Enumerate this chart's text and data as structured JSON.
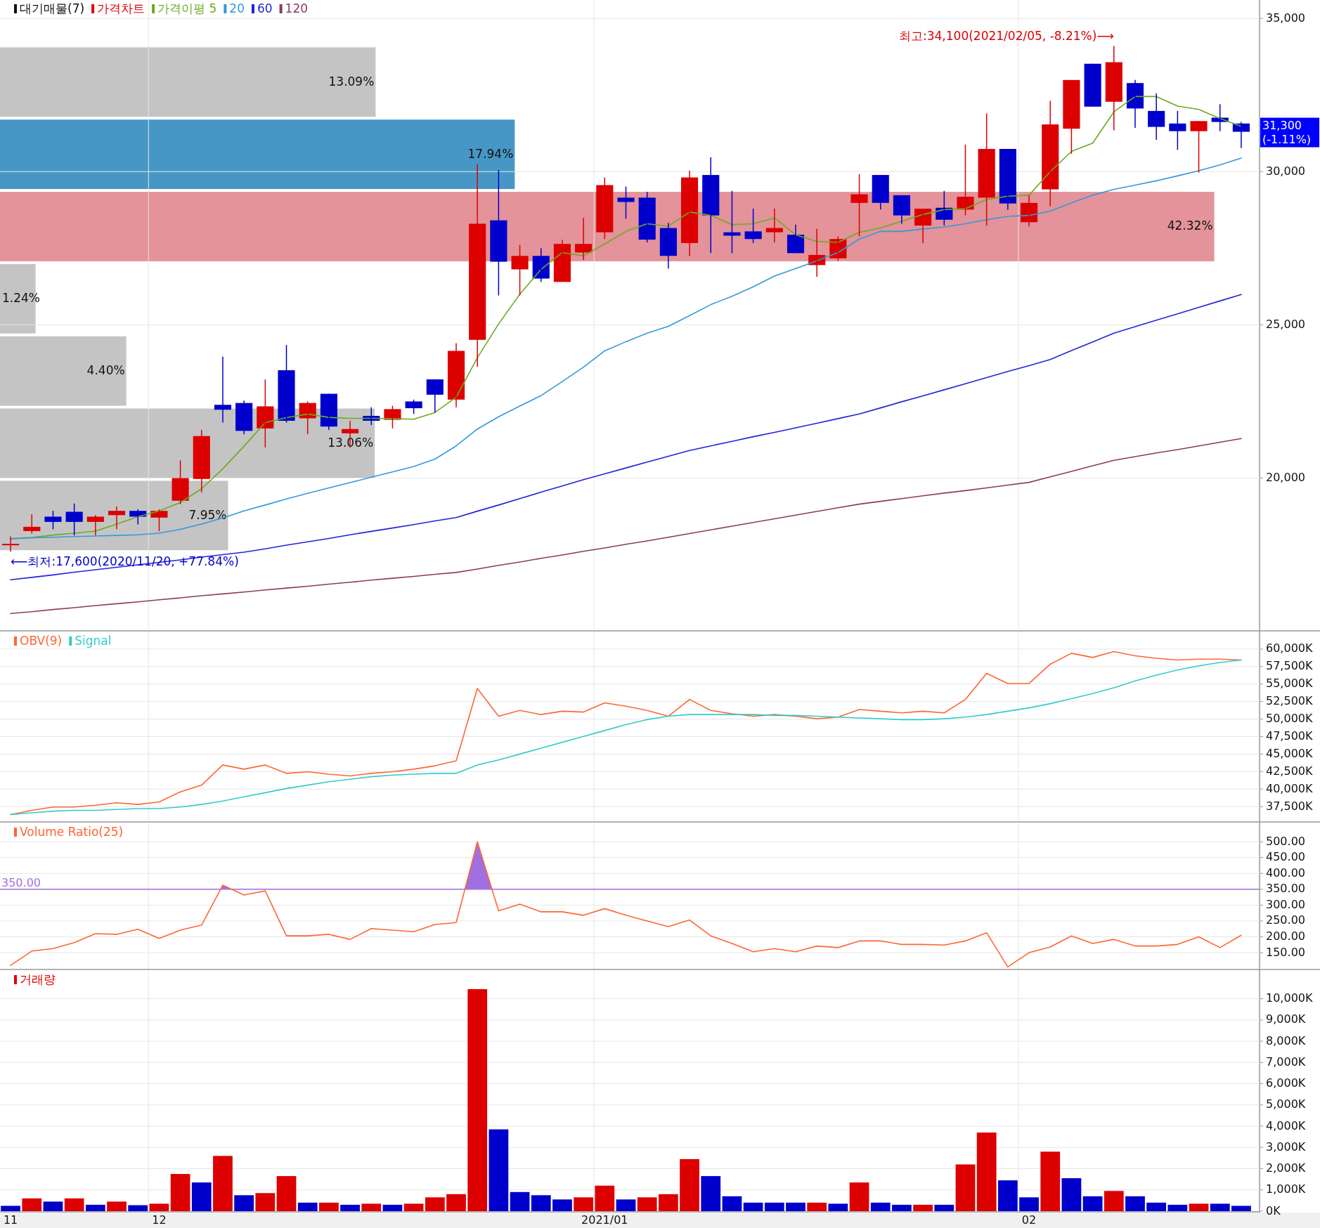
{
  "chart_data": [
    {
      "type": "bar",
      "orientation": "horizontal",
      "categories": [
        null,
        null,
        null,
        null,
        null,
        null,
        null
      ],
      "series": [
        {
          "name": "대기매물(7)",
          "values": [
            13.09,
            17.94,
            42.32,
            1.24,
            4.4,
            13.06,
            7.95
          ],
          "colors": [
            "#c4c4c4",
            "#4797c6",
            "#e39399",
            "#c4c4c4",
            "#c4c4c4",
            "#c4c4c4",
            "#c4c4c4"
          ],
          "value_labels": [
            "13.09%",
            "17.94%",
            "42.32%",
            "1.24%",
            "4.40%",
            "13.06%",
            "7.95%"
          ]
        }
      ],
      "tick_labels": false,
      "legend": "top left"
    },
    {
      "type": "candlestick",
      "categories": [
        "11",
        null,
        null,
        null,
        null,
        null,
        null,
        "12",
        null,
        null,
        null,
        null,
        null,
        null,
        null,
        null,
        null,
        null,
        null,
        null,
        null,
        null,
        null,
        null,
        null,
        null,
        null,
        null,
        "2021/01",
        null,
        null,
        null,
        null,
        null,
        null,
        null,
        null,
        null,
        null,
        null,
        null,
        null,
        null,
        null,
        null,
        null,
        null,
        null,
        "02",
        null,
        null,
        null,
        null,
        null,
        null,
        null,
        null,
        null,
        null
      ],
      "series": [
        {
          "name": "가격차트",
          "type": "candlestick",
          "color": "#dd0000",
          "ohlc": [
            [
              17830,
              18100,
              17600,
              17830
            ],
            [
              18270,
              18820,
              18190,
              18410
            ],
            [
              18740,
              18930,
              18330,
              18570
            ],
            [
              18900,
              19170,
              18130,
              18570
            ],
            [
              18570,
              18790,
              18130,
              18740
            ],
            [
              18790,
              19070,
              18330,
              18930
            ],
            [
              18930,
              18980,
              18490,
              18740
            ],
            [
              18710,
              18980,
              18270,
              18930
            ],
            [
              19260,
              20580,
              19150,
              20000
            ],
            [
              19970,
              21570,
              19530,
              21370
            ],
            [
              22390,
              23960,
              21810,
              22230
            ],
            [
              22450,
              22530,
              21430,
              21540
            ],
            [
              21620,
              23220,
              21000,
              22340
            ],
            [
              23520,
              24340,
              21810,
              21870
            ],
            [
              21950,
              22500,
              21430,
              22450
            ],
            [
              22750,
              22750,
              21570,
              21680
            ],
            [
              21460,
              21870,
              21000,
              21600
            ],
            [
              22030,
              22310,
              21730,
              21870
            ],
            [
              21900,
              22360,
              21620,
              22250
            ],
            [
              22500,
              22560,
              22090,
              22280
            ],
            [
              23220,
              23220,
              22140,
              22720
            ],
            [
              22560,
              24400,
              22310,
              24150
            ],
            [
              24510,
              30250,
              23630,
              28300
            ],
            [
              28410,
              30050,
              25960,
              27060
            ],
            [
              26810,
              27610,
              25960,
              27250
            ],
            [
              27250,
              27500,
              26400,
              26510
            ],
            [
              26400,
              27780,
              26400,
              27640
            ],
            [
              27360,
              28490,
              27120,
              27640
            ],
            [
              28020,
              29810,
              27800,
              29560
            ],
            [
              29150,
              29510,
              28460,
              29010
            ],
            [
              29150,
              29340,
              27690,
              27780
            ],
            [
              28160,
              28330,
              26840,
              27250
            ],
            [
              27670,
              30030,
              27250,
              29810
            ],
            [
              29890,
              30470,
              27340,
              28570
            ],
            [
              28020,
              29370,
              27340,
              27910
            ],
            [
              28050,
              28790,
              27670,
              27800
            ],
            [
              28020,
              28790,
              27690,
              28160
            ],
            [
              27940,
              28270,
              27340,
              27340
            ],
            [
              26950,
              28130,
              26570,
              27280
            ],
            [
              27170,
              27890,
              27090,
              27800
            ],
            [
              28980,
              29920,
              27890,
              29260
            ],
            [
              29890,
              29890,
              28760,
              28980
            ],
            [
              29230,
              29230,
              28300,
              28570
            ],
            [
              28240,
              28790,
              27670,
              28790
            ],
            [
              28820,
              29370,
              28240,
              28430
            ],
            [
              28760,
              30880,
              28570,
              29180
            ],
            [
              29150,
              31900,
              28240,
              30740
            ],
            [
              30740,
              30740,
              28760,
              28960
            ],
            [
              28350,
              29230,
              28210,
              28980
            ],
            [
              29420,
              32310,
              28870,
              31540
            ],
            [
              31400,
              32990,
              30580,
              32990
            ],
            [
              33520,
              33520,
              32120,
              32120
            ],
            [
              32280,
              34100,
              31350,
              33570
            ],
            [
              32890,
              32990,
              31430,
              32060
            ],
            [
              31980,
              32550,
              31040,
              31460
            ],
            [
              31570,
              31980,
              30710,
              31320
            ],
            [
              31320,
              31650,
              29970,
              31650
            ],
            [
              31760,
              32200,
              31320,
              31620
            ],
            [
              31570,
              31620,
              30770,
              31300
            ]
          ],
          "colors": [
            "#dd0000",
            "#dd0000",
            "#0000cc",
            "#0000cc",
            "#dd0000",
            "#dd0000",
            "#0000cc",
            "#dd0000",
            "#dd0000",
            "#dd0000",
            "#0000cc",
            "#0000cc",
            "#dd0000",
            "#0000cc",
            "#dd0000",
            "#0000cc",
            "#dd0000",
            "#0000cc",
            "#dd0000",
            "#0000cc",
            "#0000cc",
            "#dd0000",
            "#dd0000",
            "#0000cc",
            "#dd0000",
            "#0000cc",
            "#dd0000",
            "#dd0000",
            "#dd0000",
            "#0000cc",
            "#0000cc",
            "#0000cc",
            "#dd0000",
            "#0000cc",
            "#0000cc",
            "#0000cc",
            "#dd0000",
            "#0000cc",
            "#dd0000",
            "#dd0000",
            "#dd0000",
            "#0000cc",
            "#0000cc",
            "#dd0000",
            "#0000cc",
            "#dd0000",
            "#dd0000",
            "#0000cc",
            "#dd0000",
            "#dd0000",
            "#dd0000",
            "#0000cc",
            "#dd0000",
            "#0000cc",
            "#0000cc",
            "#0000cc",
            "#dd0000",
            "#0000cc",
            "#0000cc"
          ]
        },
        {
          "name": "가격이평 5",
          "type": "line",
          "color": "#6aab22",
          "values": [
            18020,
            18060,
            18140,
            18200,
            18270,
            18500,
            18740,
            18930,
            19200,
            19650,
            20300,
            21040,
            21810,
            21970,
            22090,
            21980,
            21950,
            21950,
            21940,
            21920,
            22140,
            22640,
            23930,
            25030,
            26000,
            26810,
            27360,
            27250,
            27640,
            28050,
            28300,
            28220,
            28680,
            28570,
            28270,
            28300,
            28490,
            27940,
            27720,
            27690,
            28020,
            28160,
            28380,
            28600,
            28760,
            28790,
            29090,
            29200,
            29230,
            30000,
            30660,
            30930,
            31950,
            32450,
            32450,
            32140,
            32030,
            31730,
            31480
          ]
        },
        {
          "name": "20",
          "type": "line",
          "color": "#3399dd",
          "values": [
            18020,
            18050,
            18070,
            18090,
            18110,
            18130,
            18150,
            18200,
            18330,
            18500,
            18700,
            18930,
            19120,
            19320,
            19500,
            19680,
            19850,
            20030,
            20200,
            20380,
            20620,
            21050,
            21600,
            22000,
            22350,
            22690,
            23150,
            23620,
            24150,
            24450,
            24730,
            24950,
            25300,
            25660,
            25930,
            26240,
            26590,
            26840,
            27090,
            27360,
            27800,
            28050,
            28050,
            28130,
            28190,
            28300,
            28430,
            28540,
            28570,
            28710,
            28980,
            29230,
            29420,
            29560,
            29700,
            29860,
            30030,
            30220,
            30440
          ]
        },
        {
          "name": "60",
          "type": "line",
          "color": "#2222dd",
          "values": [
            16680,
            16760,
            16840,
            16930,
            17010,
            17090,
            17170,
            17250,
            17330,
            17420,
            17500,
            17580,
            17690,
            17810,
            17920,
            18030,
            18150,
            18260,
            18370,
            18480,
            18600,
            18710,
            18920,
            19120,
            19330,
            19540,
            19740,
            19950,
            20140,
            20330,
            20520,
            20710,
            20900,
            21050,
            21200,
            21350,
            21490,
            21640,
            21790,
            21940,
            22090,
            22290,
            22490,
            22680,
            22880,
            23080,
            23280,
            23480,
            23670,
            23870,
            24160,
            24440,
            24730,
            24940,
            25150,
            25360,
            25570,
            25780,
            25990
          ]
        },
        {
          "name": "120",
          "type": "line",
          "color": "#8b3a62",
          "values": [
            15580,
            15640,
            15710,
            15770,
            15840,
            15900,
            15960,
            16030,
            16090,
            16160,
            16220,
            16280,
            16350,
            16410,
            16470,
            16540,
            16600,
            16670,
            16730,
            16790,
            16860,
            16920,
            17030,
            17150,
            17260,
            17380,
            17490,
            17610,
            17720,
            17840,
            17950,
            18070,
            18190,
            18310,
            18430,
            18550,
            18670,
            18790,
            18910,
            19030,
            19150,
            19240,
            19330,
            19420,
            19510,
            19590,
            19680,
            19770,
            19860,
            20040,
            20220,
            20400,
            20580,
            20700,
            20820,
            20930,
            21050,
            21170,
            21290
          ]
        }
      ],
      "ylim": [
        15060,
        35600
      ],
      "yticks": [
        {
          "value": 20000,
          "label": "20,000"
        },
        {
          "value": 25000,
          "label": "25,000"
        },
        {
          "value": 30000,
          "label": "30,000"
        },
        {
          "value": 35000,
          "label": "35,000"
        }
      ],
      "grid": true,
      "legend": "top left",
      "tick_labels": "y",
      "annotations": [
        "최고:34,100(2021/02/05, -8.21%)⟶",
        "⟵최저:17,600(2020/11/20, +77.84%)",
        "31,300\n(-1.11%)"
      ]
    },
    {
      "type": "line",
      "categories": [
        "11",
        null,
        null,
        null,
        null,
        null,
        null,
        "12",
        null,
        null,
        null,
        null,
        null,
        null,
        null,
        null,
        null,
        null,
        null,
        null,
        null,
        null,
        null,
        null,
        null,
        null,
        null,
        null,
        "2021/01",
        null,
        null,
        null,
        null,
        null,
        null,
        null,
        null,
        null,
        null,
        null,
        null,
        null,
        null,
        null,
        null,
        null,
        null,
        null,
        "02",
        null,
        null,
        null,
        null,
        null,
        null,
        null,
        null,
        null,
        null
      ],
      "series": [
        {
          "name": "OBV(9)",
          "color": "#ff6633",
          "values": [
            36360,
            36960,
            37440,
            37440,
            37680,
            38040,
            37800,
            38160,
            39600,
            40560,
            43440,
            42840,
            43440,
            42240,
            42480,
            42120,
            41880,
            42240,
            42480,
            42840,
            43320,
            44040,
            54360,
            50400,
            51240,
            50640,
            51120,
            51000,
            52320,
            51840,
            51240,
            50400,
            52800,
            51240,
            50760,
            50400,
            50640,
            50400,
            50040,
            50280,
            51360,
            51120,
            50880,
            51120,
            50880,
            52800,
            56520,
            55080,
            55080,
            57840,
            59400,
            58800,
            59640,
            59040,
            58680,
            58440,
            58560,
            58560,
            58440
          ]
        },
        {
          "name": "Signal",
          "color": "#33cccc",
          "values": [
            36360,
            36600,
            36840,
            36960,
            36960,
            37080,
            37200,
            37200,
            37440,
            37800,
            38280,
            38880,
            39480,
            40080,
            40560,
            41040,
            41400,
            41760,
            42000,
            42120,
            42240,
            42240,
            43440,
            44160,
            45000,
            45840,
            46680,
            47520,
            48360,
            49200,
            49920,
            50400,
            50640,
            50640,
            50640,
            50640,
            50520,
            50520,
            50400,
            50280,
            50160,
            50040,
            49920,
            49920,
            50040,
            50280,
            50640,
            51120,
            51600,
            52200,
            52920,
            53640,
            54480,
            55440,
            56280,
            57000,
            57600,
            58080,
            58440
          ]
        }
      ],
      "ylim": [
        35400,
        62400
      ],
      "yticks": [
        {
          "value": 37500,
          "label": "37,500K"
        },
        {
          "value": 40000,
          "label": "40,000K"
        },
        {
          "value": 42500,
          "label": "42,500K"
        },
        {
          "value": 45000,
          "label": "45,000K"
        },
        {
          "value": 47500,
          "label": "47,500K"
        },
        {
          "value": 50000,
          "label": "50,000K"
        },
        {
          "value": 52500,
          "label": "52,500K"
        },
        {
          "value": 55000,
          "label": "55,000K"
        },
        {
          "value": 57500,
          "label": "57,500K"
        },
        {
          "value": 60000,
          "label": "60,000K"
        }
      ],
      "grid": true,
      "legend": "top left",
      "tick_labels": "y"
    },
    {
      "type": "line",
      "categories": [
        "11",
        null,
        null,
        null,
        null,
        null,
        null,
        "12",
        null,
        null,
        null,
        null,
        null,
        null,
        null,
        null,
        null,
        null,
        null,
        null,
        null,
        null,
        null,
        null,
        null,
        null,
        null,
        null,
        "2021/01",
        null,
        null,
        null,
        null,
        null,
        null,
        null,
        null,
        null,
        null,
        null,
        null,
        null,
        null,
        null,
        null,
        null,
        null,
        null,
        "02",
        null,
        null,
        null,
        null,
        null,
        null,
        null,
        null,
        null,
        null
      ],
      "series": [
        {
          "name": "Volume Ratio(25)",
          "color": "#ff6633",
          "values": [
            110,
            155,
            163,
            182,
            210,
            208,
            224,
            195,
            221,
            237,
            363,
            332,
            345,
            203,
            203,
            208,
            192,
            226,
            221,
            216,
            239,
            245,
            500,
            282,
            303,
            279,
            279,
            268,
            289,
            268,
            250,
            232,
            253,
            203,
            179,
            153,
            163,
            153,
            171,
            166,
            187,
            187,
            176,
            176,
            174,
            187,
            213,
            105,
            150,
            168,
            203,
            179,
            192,
            171,
            171,
            176,
            200,
            166,
            205
          ]
        }
      ],
      "ylim": [
        97,
        558
      ],
      "yticks": [
        {
          "value": 150,
          "label": "150.00"
        },
        {
          "value": 200,
          "label": "200.00"
        },
        {
          "value": 250,
          "label": "250.00"
        },
        {
          "value": 300,
          "label": "300.00"
        },
        {
          "value": 350,
          "label": "350.00"
        },
        {
          "value": 400,
          "label": "400.00"
        },
        {
          "value": 450,
          "label": "450.00"
        },
        {
          "value": 500,
          "label": "500.00"
        }
      ],
      "ref_lines": [
        {
          "axis": "y",
          "value": 350,
          "label": "350.00",
          "color": "#a070e0"
        }
      ],
      "grid": true,
      "legend": "top left",
      "tick_labels": "y"
    },
    {
      "type": "bar",
      "categories": [
        "11",
        null,
        null,
        null,
        null,
        null,
        null,
        "12",
        null,
        null,
        null,
        null,
        null,
        null,
        null,
        null,
        null,
        null,
        null,
        null,
        null,
        null,
        null,
        null,
        null,
        null,
        null,
        null,
        "2021/01",
        null,
        null,
        null,
        null,
        null,
        null,
        null,
        null,
        null,
        null,
        null,
        null,
        null,
        null,
        null,
        null,
        null,
        null,
        null,
        "02",
        null,
        null,
        null,
        null,
        null,
        null,
        null,
        null,
        null,
        null
      ],
      "series": [
        {
          "name": "거래량",
          "color": "#dd0000",
          "values": [
            250,
            600,
            450,
            600,
            300,
            450,
            280,
            350,
            1750,
            1350,
            2600,
            750,
            850,
            1650,
            400,
            400,
            300,
            350,
            300,
            350,
            650,
            800,
            10450,
            3850,
            900,
            750,
            550,
            650,
            1200,
            550,
            650,
            800,
            2450,
            1650,
            700,
            400,
            400,
            400,
            400,
            350,
            1350,
            400,
            300,
            300,
            300,
            2200,
            3700,
            1450,
            650,
            2800,
            1550,
            700,
            950,
            700,
            400,
            300,
            350,
            350,
            250
          ],
          "colors": [
            "#0000cc",
            "#dd0000",
            "#0000cc",
            "#dd0000",
            "#0000cc",
            "#dd0000",
            "#0000cc",
            "#dd0000",
            "#dd0000",
            "#0000cc",
            "#dd0000",
            "#0000cc",
            "#dd0000",
            "#dd0000",
            "#0000cc",
            "#dd0000",
            "#0000cc",
            "#dd0000",
            "#0000cc",
            "#dd0000",
            "#dd0000",
            "#dd0000",
            "#dd0000",
            "#0000cc",
            "#0000cc",
            "#0000cc",
            "#0000cc",
            "#dd0000",
            "#dd0000",
            "#0000cc",
            "#dd0000",
            "#dd0000",
            "#dd0000",
            "#0000cc",
            "#0000cc",
            "#0000cc",
            "#0000cc",
            "#0000cc",
            "#dd0000",
            "#0000cc",
            "#dd0000",
            "#0000cc",
            "#0000cc",
            "#dd0000",
            "#0000cc",
            "#dd0000",
            "#dd0000",
            "#0000cc",
            "#0000cc",
            "#dd0000",
            "#0000cc",
            "#0000cc",
            "#dd0000",
            "#0000cc",
            "#0000cc",
            "#0000cc",
            "#dd0000",
            "#0000cc",
            "#0000cc"
          ]
        }
      ],
      "ylim": [
        0,
        11310
      ],
      "yticks": [
        {
          "value": 0,
          "label": "0K"
        },
        {
          "value": 1000,
          "label": "1,000K"
        },
        {
          "value": 2000,
          "label": "2,000K"
        },
        {
          "value": 3000,
          "label": "3,000K"
        },
        {
          "value": 4000,
          "label": "4,000K"
        },
        {
          "value": 5000,
          "label": "5,000K"
        },
        {
          "value": 6000,
          "label": "6,000K"
        },
        {
          "value": 7000,
          "label": "7,000K"
        },
        {
          "value": 8000,
          "label": "8,000K"
        },
        {
          "value": 9000,
          "label": "9,000K"
        },
        {
          "value": 10000,
          "label": "10,000K"
        }
      ],
      "grid": true,
      "legend": "top left"
    }
  ]
}
